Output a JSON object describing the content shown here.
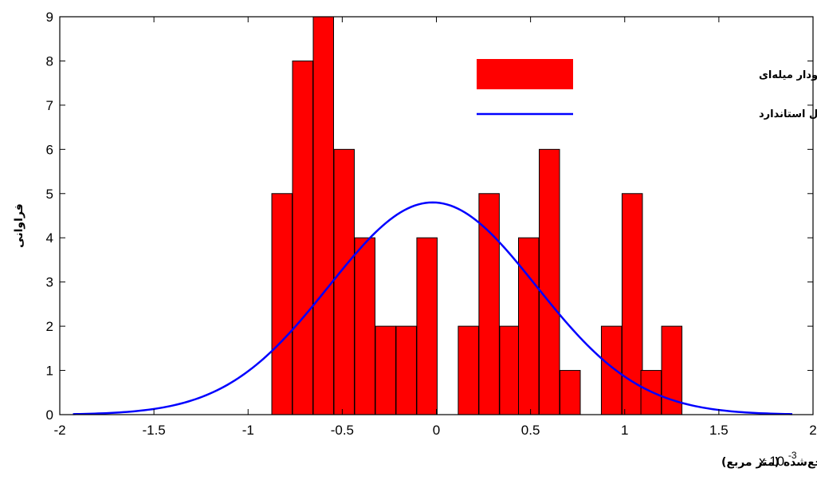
{
  "chart_data": {
    "type": "bar",
    "bar_color": "#ff0000",
    "curve_color": "#0000ff",
    "xlabel": "اختلاف مقادیر سندی مساحت املاک با مقادیر نظیر در نقشه زمین‌مرجع‌شده (متر مربع)",
    "ylabel": "فراوانی",
    "x_multiplier": {
      "base": "x 10",
      "exp": "-3"
    },
    "xlim": [
      -2,
      2
    ],
    "ylim": [
      0,
      9
    ],
    "x_ticks": [
      "-2",
      "-1.5",
      "-1",
      "-0.5",
      "0",
      "0.5",
      "1",
      "1.5",
      "2"
    ],
    "y_ticks": [
      "0",
      "1",
      "2",
      "3",
      "4",
      "5",
      "6",
      "7",
      "8",
      "9"
    ],
    "bin_width": 0.108,
    "bars": [
      {
        "x": -0.82,
        "y": 5
      },
      {
        "x": -0.71,
        "y": 8
      },
      {
        "x": -0.6,
        "y": 9
      },
      {
        "x": -0.49,
        "y": 6
      },
      {
        "x": -0.38,
        "y": 4
      },
      {
        "x": -0.27,
        "y": 2
      },
      {
        "x": -0.16,
        "y": 2
      },
      {
        "x": -0.05,
        "y": 4
      },
      {
        "x": 0.06,
        "y": 0
      },
      {
        "x": 0.17,
        "y": 2
      },
      {
        "x": 0.28,
        "y": 5
      },
      {
        "x": 0.39,
        "y": 2
      },
      {
        "x": 0.49,
        "y": 4
      },
      {
        "x": 0.6,
        "y": 6
      },
      {
        "x": 0.71,
        "y": 1
      },
      {
        "x": 0.82,
        "y": 0
      },
      {
        "x": 0.93,
        "y": 2
      },
      {
        "x": 1.04,
        "y": 5
      },
      {
        "x": 1.14,
        "y": 1
      },
      {
        "x": 1.25,
        "y": 2
      }
    ],
    "curve": {
      "mean": -0.02,
      "sd": 0.55,
      "peak": 4.8,
      "range": [
        -1.93,
        1.89
      ]
    },
    "legend": {
      "position": "top-right",
      "items": [
        {
          "label": "نمودار میله‌ای",
          "kind": "bar"
        },
        {
          "label": "نمودار نرمال استاندارد",
          "kind": "line"
        }
      ]
    },
    "grid": false
  }
}
